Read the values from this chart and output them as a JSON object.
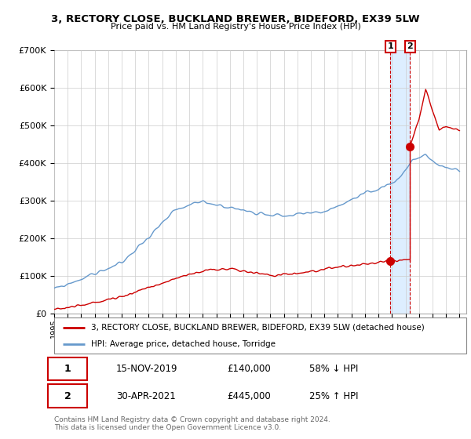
{
  "title1": "3, RECTORY CLOSE, BUCKLAND BREWER, BIDEFORD, EX39 5LW",
  "title2": "Price paid vs. HM Land Registry's House Price Index (HPI)",
  "ylim": [
    0,
    700000
  ],
  "sale1_date": "15-NOV-2019",
  "sale1_price": 140000,
  "sale1_label": "58% ↓ HPI",
  "sale2_date": "30-APR-2021",
  "sale2_price": 445000,
  "sale2_label": "25% ↑ HPI",
  "legend1": "3, RECTORY CLOSE, BUCKLAND BREWER, BIDEFORD, EX39 5LW (detached house)",
  "legend2": "HPI: Average price, detached house, Torridge",
  "footer": "Contains HM Land Registry data © Crown copyright and database right 2024.\nThis data is licensed under the Open Government Licence v3.0.",
  "line_color_red": "#cc0000",
  "line_color_blue": "#6699cc",
  "shade_color": "#ddeeff",
  "annotation_box_color": "#cc0000",
  "grid_color": "#cccccc",
  "sale1_x": 2019.88,
  "sale2_x": 2021.33
}
